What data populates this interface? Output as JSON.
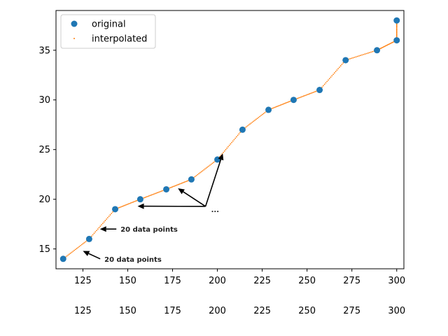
{
  "chart_data": {
    "type": "scatter",
    "title": "",
    "xlabel": "",
    "ylabel": "",
    "xlim": [
      110,
      304
    ],
    "ylim": [
      13,
      39
    ],
    "x_ticks": [
      125,
      150,
      175,
      200,
      225,
      250,
      275,
      300
    ],
    "x_tick_labels": [
      "125",
      "150",
      "175",
      "200",
      "225",
      "250",
      "275",
      "300"
    ],
    "x_tick_labels_second_row": [
      "125",
      "150",
      "175",
      "200",
      "225",
      "250",
      "275",
      "300"
    ],
    "y_ticks": [
      15,
      20,
      25,
      30,
      35
    ],
    "y_tick_labels": [
      "15",
      "20",
      "25",
      "30",
      "35"
    ],
    "grid": false,
    "legend_position": "top-left",
    "series": [
      {
        "name": "original",
        "marker": "circle",
        "color": "#1f77b4",
        "x": [
          114,
          128.5,
          143,
          157,
          171.5,
          185.5,
          200,
          214,
          228.5,
          242.5,
          257,
          271.5,
          289,
          300,
          300
        ],
        "y": [
          14,
          16,
          19,
          20,
          21,
          22,
          24,
          27,
          29,
          30,
          31,
          34,
          35,
          36,
          38
        ]
      },
      {
        "name": "interpolated",
        "marker": "dot",
        "color": "#ff7f0e",
        "points_between_originals": 20
      }
    ],
    "annotations": [
      {
        "text": "20 data points",
        "from": [
          137,
          14
        ],
        "to": [
          125,
          14.8
        ]
      },
      {
        "text": "20 data points",
        "from": [
          146,
          17
        ],
        "to": [
          134.5,
          17
        ]
      },
      {
        "text": "...",
        "from": [
          196.5,
          19
        ],
        "to": [
          178,
          21.1
        ]
      },
      {
        "text": "...",
        "from": [
          196.5,
          19
        ],
        "to": [
          155.5,
          19.3
        ]
      },
      {
        "text": "...",
        "from": [
          196.5,
          19
        ],
        "to": [
          203,
          24.6
        ]
      }
    ]
  }
}
